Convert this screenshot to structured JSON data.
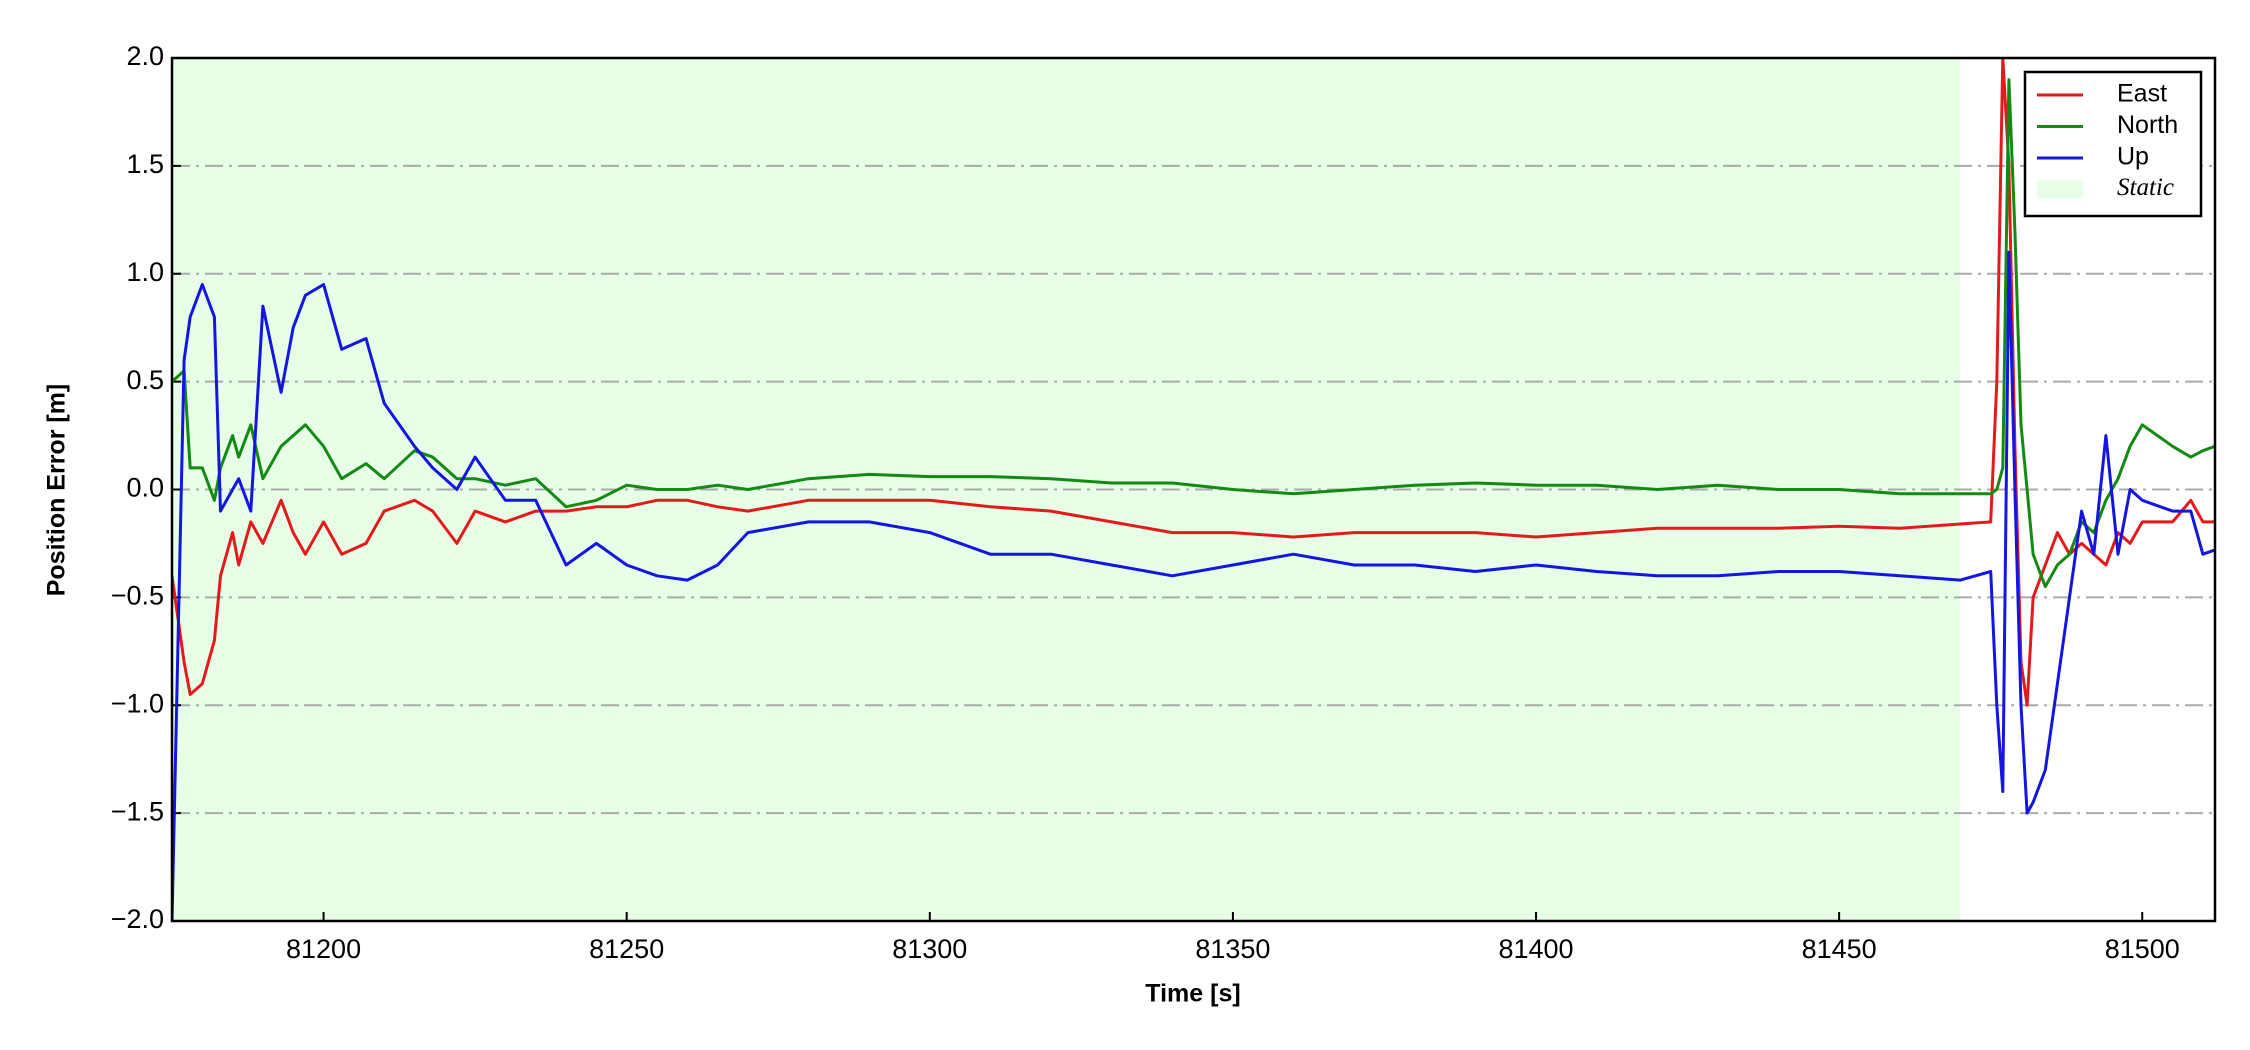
{
  "chart_data": {
    "type": "line",
    "xlabel": "Time [s]",
    "ylabel": "Position Error [m]",
    "x": [
      81175,
      81177,
      81178,
      81180,
      81182,
      81183,
      81185,
      81186,
      81188,
      81190,
      81193,
      81195,
      81197,
      81200,
      81203,
      81207,
      81210,
      81215,
      81218,
      81222,
      81225,
      81230,
      81235,
      81240,
      81245,
      81250,
      81255,
      81260,
      81265,
      81270,
      81280,
      81290,
      81300,
      81310,
      81320,
      81330,
      81340,
      81350,
      81360,
      81370,
      81380,
      81390,
      81400,
      81410,
      81420,
      81430,
      81440,
      81450,
      81460,
      81470,
      81475,
      81476,
      81477,
      81478,
      81479,
      81480,
      81481,
      81482,
      81484,
      81486,
      81488,
      81490,
      81492,
      81494,
      81496,
      81498,
      81500,
      81505,
      81508,
      81510,
      81512
    ],
    "series": [
      {
        "name": "East",
        "color": "#e31a1c",
        "values": [
          -0.4,
          -0.8,
          -0.95,
          -0.9,
          -0.7,
          -0.4,
          -0.2,
          -0.35,
          -0.15,
          -0.25,
          -0.05,
          -0.2,
          -0.3,
          -0.15,
          -0.3,
          -0.25,
          -0.1,
          -0.05,
          -0.1,
          -0.25,
          -0.1,
          -0.15,
          -0.1,
          -0.1,
          -0.08,
          -0.08,
          -0.05,
          -0.05,
          -0.08,
          -0.1,
          -0.05,
          -0.05,
          -0.05,
          -0.08,
          -0.1,
          -0.15,
          -0.2,
          -0.2,
          -0.22,
          -0.2,
          -0.2,
          -0.2,
          -0.22,
          -0.2,
          -0.18,
          -0.18,
          -0.18,
          -0.17,
          -0.18,
          -0.16,
          -0.15,
          0.5,
          2.0,
          1.5,
          0.2,
          -0.8,
          -1.0,
          -0.5,
          -0.35,
          -0.2,
          -0.3,
          -0.25,
          -0.3,
          -0.35,
          -0.2,
          -0.25,
          -0.15,
          -0.15,
          -0.05,
          -0.15,
          -0.15
        ]
      },
      {
        "name": "North",
        "color": "#138a13",
        "values": [
          0.5,
          0.55,
          0.1,
          0.1,
          -0.05,
          0.1,
          0.25,
          0.15,
          0.3,
          0.05,
          0.2,
          0.25,
          0.3,
          0.2,
          0.05,
          0.12,
          0.05,
          0.18,
          0.15,
          0.05,
          0.05,
          0.02,
          0.05,
          -0.08,
          -0.05,
          0.02,
          0.0,
          0.0,
          0.02,
          0.0,
          0.05,
          0.07,
          0.06,
          0.06,
          0.05,
          0.03,
          0.03,
          0.0,
          -0.02,
          0.0,
          0.02,
          0.03,
          0.02,
          0.02,
          0.0,
          0.02,
          0.0,
          0.0,
          -0.02,
          -0.02,
          -0.02,
          0.0,
          0.1,
          1.9,
          1.2,
          0.3,
          0.0,
          -0.3,
          -0.45,
          -0.35,
          -0.3,
          -0.15,
          -0.2,
          -0.05,
          0.05,
          0.2,
          0.3,
          0.2,
          0.15,
          0.18,
          0.2
        ]
      },
      {
        "name": "Up",
        "color": "#1515e0",
        "values": [
          -2.0,
          0.6,
          0.8,
          0.95,
          0.8,
          -0.1,
          0.0,
          0.05,
          -0.1,
          0.85,
          0.45,
          0.75,
          0.9,
          0.95,
          0.65,
          0.7,
          0.4,
          0.2,
          0.1,
          0.0,
          0.15,
          -0.05,
          -0.05,
          -0.35,
          -0.25,
          -0.35,
          -0.4,
          -0.42,
          -0.35,
          -0.2,
          -0.15,
          -0.15,
          -0.2,
          -0.3,
          -0.3,
          -0.35,
          -0.4,
          -0.35,
          -0.3,
          -0.35,
          -0.35,
          -0.38,
          -0.35,
          -0.38,
          -0.4,
          -0.4,
          -0.38,
          -0.38,
          -0.4,
          -0.42,
          -0.38,
          -1.0,
          -1.4,
          1.1,
          0.0,
          -1.0,
          -1.5,
          -1.45,
          -1.3,
          -0.9,
          -0.5,
          -0.1,
          -0.3,
          0.25,
          -0.3,
          0.0,
          -0.05,
          -0.1,
          -0.1,
          -0.3,
          -0.28
        ]
      }
    ],
    "span": {
      "name": "Static",
      "color": "#e6ffe6",
      "x": [
        81175,
        81470
      ]
    },
    "xlim": [
      81175,
      81512
    ],
    "xticks": [
      81200,
      81250,
      81300,
      81350,
      81400,
      81450,
      81500
    ],
    "ylim": [
      -2.0,
      2.0
    ],
    "yticks": [
      {
        "value": -2.0,
        "label": "−2.0"
      },
      {
        "value": -1.5,
        "label": "−1.5"
      },
      {
        "value": -1.0,
        "label": "−1.0"
      },
      {
        "value": -0.5,
        "label": "−0.5"
      },
      {
        "value": 0.0,
        "label": "0.0"
      },
      {
        "value": 0.5,
        "label": "0.5"
      },
      {
        "value": 1.0,
        "label": "1.0"
      },
      {
        "value": 1.5,
        "label": "1.5"
      },
      {
        "value": 2.0,
        "label": "2.0"
      }
    ],
    "grid": true,
    "legend": "upper right"
  }
}
